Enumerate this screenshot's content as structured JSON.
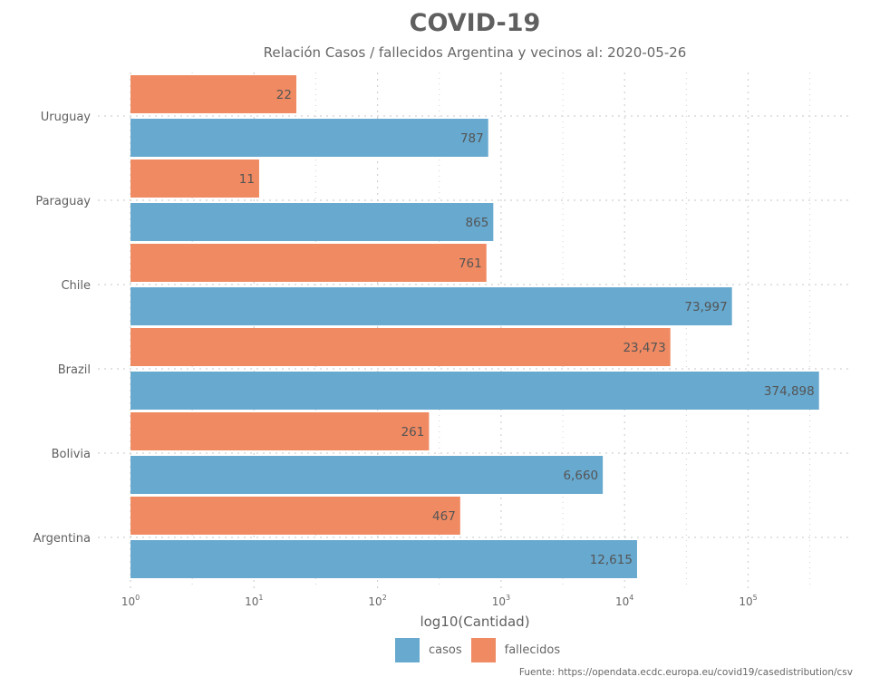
{
  "title": "COVID-19",
  "subtitle": "Relación Casos / fallecidos Argentina y vecinos al:  2020-05-26",
  "caption": "Fuente: https://opendata.ecdc.europa.eu/covid19/casedistribution/csv",
  "colors": {
    "casos": "#67a9cf",
    "fallecidos": "#ef8a62",
    "grid": "#d0d0d0",
    "text": "#5f5f5f"
  },
  "chart_data": {
    "type": "bar",
    "orientation": "horizontal",
    "x_scale": "log10",
    "xlabel": "log10(Cantidad)",
    "xlim": [
      1,
      500000
    ],
    "x_ticks": [
      1,
      10,
      100,
      1000,
      10000,
      100000
    ],
    "grid": true,
    "legend_position": "bottom",
    "categories": [
      "Argentina",
      "Bolivia",
      "Brazil",
      "Chile",
      "Paraguay",
      "Uruguay"
    ],
    "series": [
      {
        "name": "casos",
        "values": [
          12615,
          6660,
          374898,
          73997,
          865,
          787
        ],
        "labels": [
          "12,615",
          "6,660",
          "374,898",
          "73,997",
          "865",
          "787"
        ]
      },
      {
        "name": "fallecidos",
        "values": [
          467,
          261,
          23473,
          761,
          11,
          22
        ],
        "labels": [
          "467",
          "261",
          "23,473",
          "761",
          "11",
          "22"
        ]
      }
    ]
  }
}
